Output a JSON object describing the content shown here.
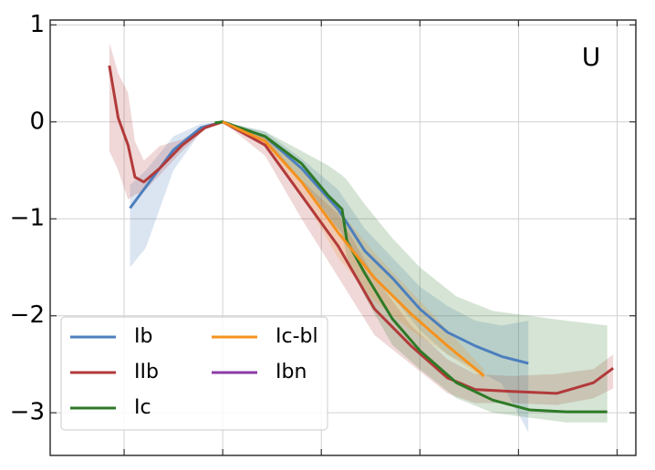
{
  "chart_data": {
    "type": "line",
    "annotation": "U",
    "xlim": [
      -1.75,
      4.19
    ],
    "ylim": [
      -3.44,
      1.05
    ],
    "xticks": [
      -1,
      0,
      1,
      2,
      3,
      4
    ],
    "yticks": [
      1,
      0,
      {
        "value": -1,
        "label": "−1"
      },
      {
        "value": -2,
        "label": "−2"
      },
      {
        "value": -3,
        "label": "−3"
      }
    ],
    "grid": true,
    "legend": "lower left",
    "series": [
      {
        "name": "Ib",
        "color": "#4c7fbd",
        "x": [
          -0.94,
          -0.78,
          -0.5,
          -0.22,
          0,
          0.43,
          0.8,
          1.17,
          1.44,
          1.72,
          2,
          2.28,
          2.56,
          2.83,
          3.1
        ],
        "values": [
          -0.89,
          -0.67,
          -0.29,
          -0.06,
          0,
          -0.15,
          -0.48,
          -0.9,
          -1.33,
          -1.61,
          -1.93,
          -2.17,
          -2.31,
          -2.42,
          -2.49
        ],
        "lower": [
          -1.5,
          -1.3,
          -0.5,
          -0.1,
          0,
          -0.2,
          -0.6,
          -1.1,
          -1.5,
          -1.8,
          -2.15,
          -2.4,
          -2.55,
          -2.7,
          -3.2
        ],
        "upper": [
          -0.65,
          -0.5,
          -0.15,
          -0.02,
          0,
          -0.1,
          -0.38,
          -0.7,
          -1.1,
          -1.4,
          -1.7,
          -1.9,
          -2.05,
          -2.1,
          -2.05
        ]
      },
      {
        "name": "IIb",
        "color": "#b23a3a",
        "x": [
          -1.15,
          -1.06,
          -0.96,
          -0.89,
          -0.8,
          -0.64,
          -0.41,
          -0.18,
          0,
          0.43,
          0.8,
          1.17,
          1.54,
          1.91,
          2.28,
          2.56,
          2.93,
          3.39,
          3.76,
          3.96
        ],
        "values": [
          0.58,
          0.04,
          -0.24,
          -0.57,
          -0.62,
          -0.48,
          -0.24,
          -0.06,
          0,
          -0.24,
          -0.76,
          -1.28,
          -1.93,
          -2.31,
          -2.64,
          -2.76,
          -2.78,
          -2.8,
          -2.69,
          -2.54
        ],
        "lower": [
          -0.3,
          -0.5,
          -0.8,
          -0.75,
          -0.72,
          -0.55,
          -0.3,
          -0.08,
          0,
          -0.35,
          -1,
          -1.6,
          -2.2,
          -2.5,
          -2.8,
          -2.9,
          -2.9,
          -2.92,
          -2.85,
          -2.75
        ],
        "upper": [
          0.82,
          0.5,
          0.3,
          -0.2,
          -0.4,
          -0.25,
          -0.18,
          -0.04,
          0,
          -0.15,
          -0.6,
          -0.95,
          -1.6,
          -2.1,
          -2.45,
          -2.6,
          -2.62,
          -2.6,
          -2.55,
          -2.4
        ]
      },
      {
        "name": "Ic",
        "color": "#2e7a26",
        "x": [
          -0.08,
          0,
          0.43,
          0.8,
          1.07,
          1.21,
          1.26,
          1.44,
          1.72,
          2,
          2.37,
          2.74,
          3.11,
          3.48,
          3.9
        ],
        "values": [
          -0.01,
          0,
          -0.15,
          -0.43,
          -0.76,
          -0.9,
          -1.23,
          -1.56,
          -2.03,
          -2.36,
          -2.69,
          -2.87,
          -2.97,
          -2.99,
          -2.99
        ],
        "lower": [
          -0.01,
          0,
          -0.2,
          -0.6,
          -1,
          -1.15,
          -1.4,
          -1.8,
          -2.3,
          -2.55,
          -2.85,
          -3,
          -3.05,
          -3.1,
          -3.1
        ],
        "upper": [
          -0.01,
          0,
          -0.1,
          -0.3,
          -0.45,
          -0.55,
          -0.6,
          -0.85,
          -1.2,
          -1.5,
          -1.8,
          -1.95,
          -2,
          -2.05,
          -2.1
        ]
      },
      {
        "name": "Ic-bl",
        "color": "#f5921e",
        "x": [
          0,
          0.43,
          0.8,
          1.17,
          1.54,
          1.91,
          2.28,
          2.65
        ],
        "values": [
          0,
          -0.2,
          -0.62,
          -1.14,
          -1.61,
          -1.98,
          -2.31,
          -2.62
        ],
        "lower": [
          0,
          -0.25,
          -0.75,
          -1.4,
          -1.85,
          -2.15,
          -2.4,
          -2.65
        ],
        "upper": [
          0,
          -0.15,
          -0.5,
          -0.9,
          -1.35,
          -1.75,
          -2.15,
          -2.55
        ]
      },
      {
        "name": "Ibn",
        "color": "#8e3aa8",
        "x": [],
        "values": [],
        "lower": [],
        "upper": []
      }
    ]
  }
}
